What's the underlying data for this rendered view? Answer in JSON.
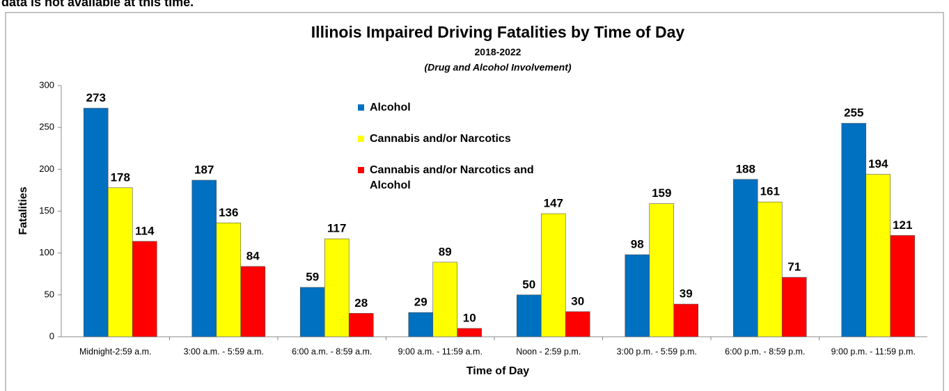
{
  "note": "data is not available at this time.",
  "chart_data": {
    "type": "bar",
    "title": "Illinois Impaired Driving Fatalities by Time of Day",
    "subtitle": "2018-2022",
    "subtitle2": "(Drug and Alcohol Involvement)",
    "x_label": "Time of Day",
    "y_label": "Fatalities",
    "categories": [
      "Midnight-2:59 a.m.",
      "3:00 a.m. - 5:59 a.m.",
      "6:00 a.m. - 8:59 a.m.",
      "9:00 a.m. - 11:59 a.m.",
      "Noon - 2:59 p.m.",
      "3:00 p.m. - 5:59 p.m.",
      "6:00 p.m. - 8:59 p.m.",
      "9:00 p.m. - 11:59 p.m."
    ],
    "series": [
      {
        "name": "Alcohol",
        "color": "#0070c0",
        "values": [
          273,
          187,
          59,
          29,
          50,
          98,
          188,
          255
        ]
      },
      {
        "name": "Cannabis and/or Narcotics",
        "color": "#ffff00",
        "values": [
          178,
          136,
          117,
          89,
          147,
          159,
          161,
          194
        ]
      },
      {
        "name": "Cannabis and/or Narcotics and Alcohol",
        "color": "#ff0000",
        "values": [
          114,
          84,
          28,
          10,
          30,
          39,
          71,
          121
        ]
      }
    ],
    "ylim": [
      0,
      300
    ],
    "yticks": [
      0,
      50,
      100,
      150,
      200,
      250,
      300
    ],
    "grid": false
  }
}
